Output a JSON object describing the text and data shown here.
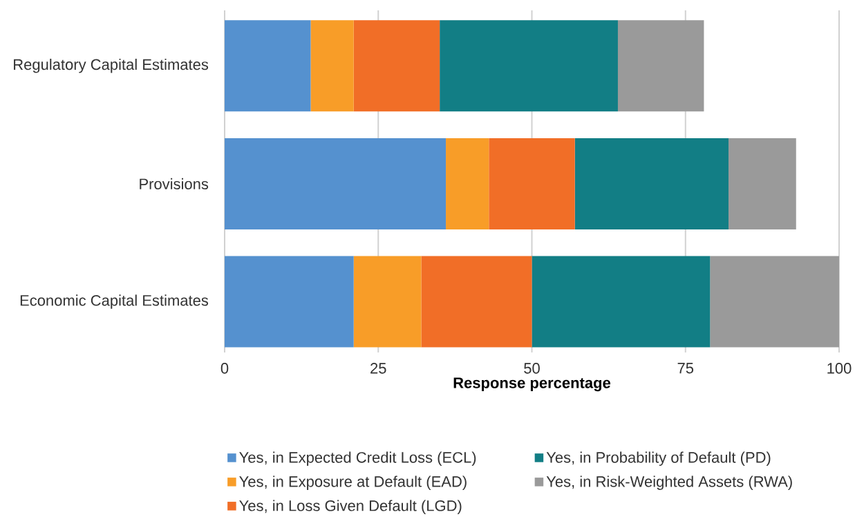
{
  "chart_data": {
    "type": "bar",
    "orientation": "horizontal",
    "stacked": true,
    "xlabel": "Response percentage",
    "categories": [
      "Regulatory Capital Estimates",
      "Provisions",
      "Economic Capital Estimates"
    ],
    "series": [
      {
        "name": "Yes, in Expected Credit Loss (ECL)",
        "color": "#5591cf",
        "values": [
          14,
          36,
          21
        ]
      },
      {
        "name": "Yes, in Exposure at Default (EAD)",
        "color": "#f89d28",
        "values": [
          7,
          7,
          11
        ]
      },
      {
        "name": "Yes, in Loss Given Default (LGD)",
        "color": "#f16e27",
        "values": [
          14,
          14,
          18
        ]
      },
      {
        "name": "Yes, in Probability of Default (PD)",
        "color": "#127e85",
        "values": [
          29,
          25,
          29
        ]
      },
      {
        "name": "Yes, in Risk-Weighted Assets (RWA)",
        "color": "#9a9a9a",
        "values": [
          14,
          11,
          21
        ]
      }
    ],
    "xlim": [
      0,
      100
    ],
    "xticks": [
      0,
      25,
      50,
      75,
      100
    ],
    "grid": "x",
    "legend": "bottom"
  }
}
